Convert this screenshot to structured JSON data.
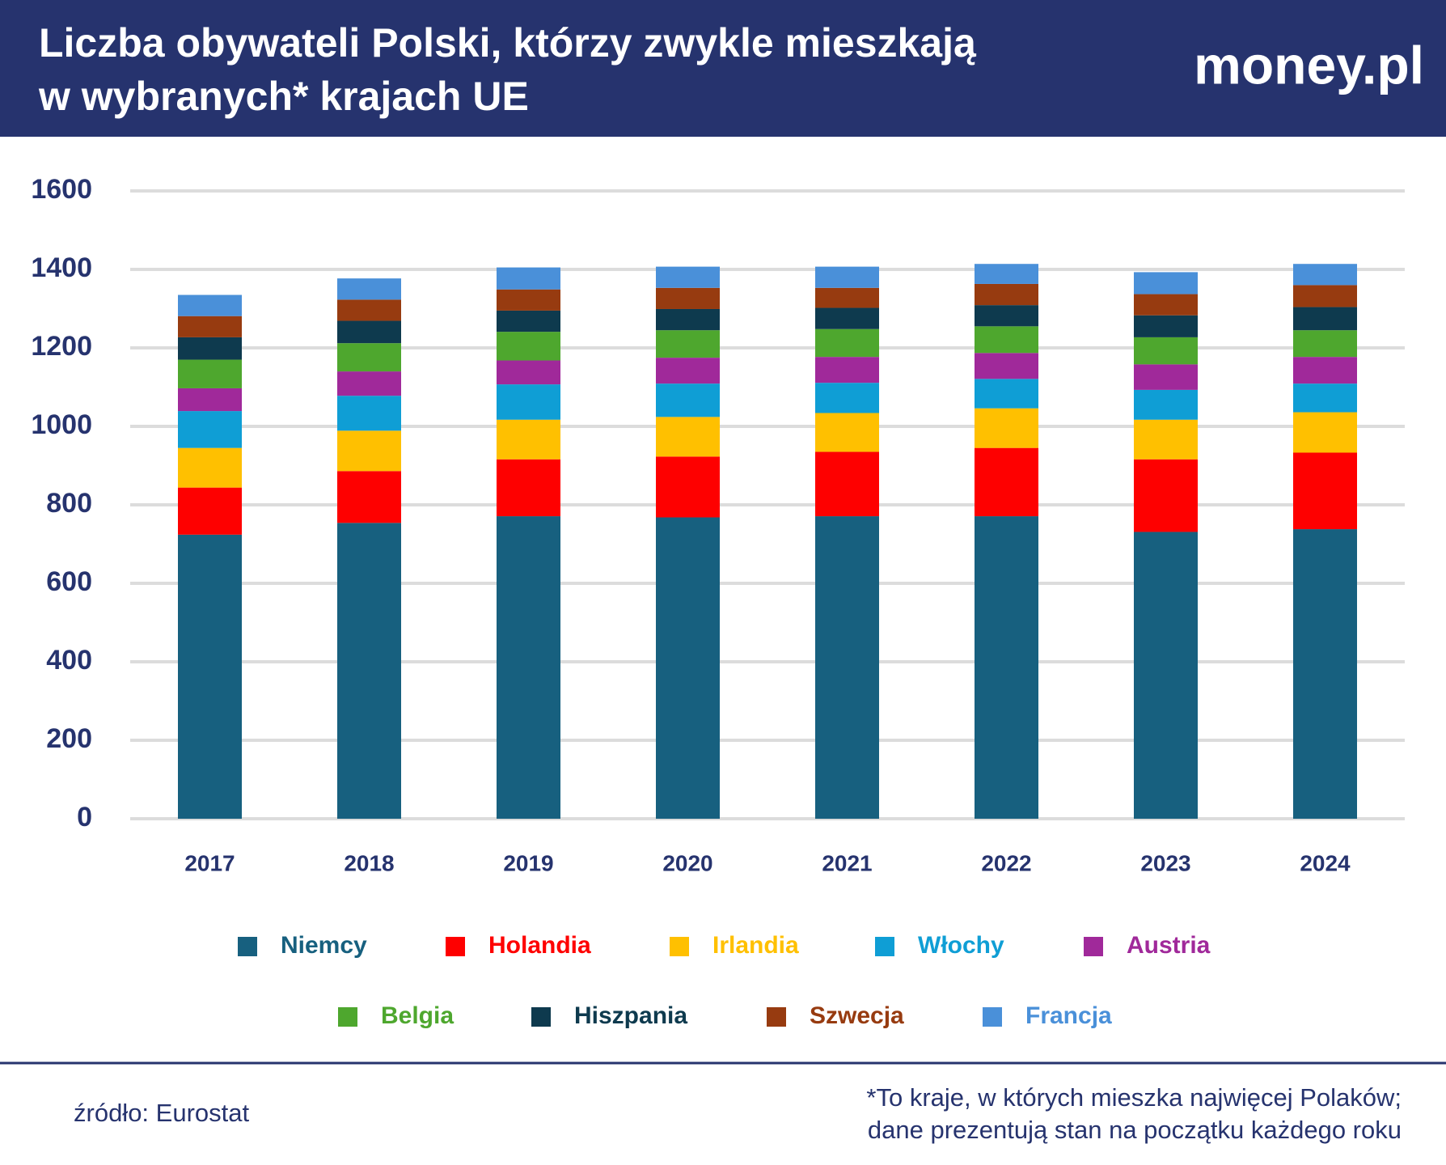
{
  "chart_data": {
    "type": "stacked_bar",
    "title": [
      "Liczba obywateli Polski, którzy zwykle mieszkają",
      "w wybranych* krajach UE"
    ],
    "logo": "money.pl",
    "categories": [
      "2017",
      "2018",
      "2019",
      "2020",
      "2021",
      "2022",
      "2023",
      "2024"
    ],
    "series": [
      {
        "name": "Niemcy",
        "color": "#17607f",
        "values": [
          724,
          754,
          771,
          768,
          771,
          771,
          731,
          738
        ]
      },
      {
        "name": "Holandia",
        "color": "#fe0000",
        "values": [
          120,
          132,
          145,
          155,
          164,
          174,
          185,
          195
        ]
      },
      {
        "name": "Irlandia",
        "color": "#ffc000",
        "values": [
          101,
          103,
          101,
          101,
          99,
          101,
          101,
          103
        ]
      },
      {
        "name": "Włochy",
        "color": "#0f9ed5",
        "values": [
          94,
          89,
          90,
          85,
          77,
          75,
          76,
          73
        ]
      },
      {
        "name": "Austria",
        "color": "#a0299a",
        "values": [
          58,
          62,
          61,
          66,
          66,
          66,
          65,
          68
        ]
      },
      {
        "name": "Belgia",
        "color": "#4ea72e",
        "values": [
          73,
          72,
          73,
          70,
          71,
          68,
          69,
          68
        ]
      },
      {
        "name": "Hiszpania",
        "color": "#0e3a4e",
        "values": [
          57,
          57,
          54,
          54,
          54,
          54,
          56,
          59
        ]
      },
      {
        "name": "Szwecja",
        "color": "#973b10",
        "values": [
          54,
          54,
          54,
          54,
          51,
          54,
          54,
          56
        ]
      },
      {
        "name": "Francja",
        "color": "#4a90d9",
        "values": [
          54,
          54,
          56,
          54,
          54,
          51,
          56,
          54
        ]
      }
    ],
    "ylim": [
      0,
      1600
    ],
    "yticks": [
      0,
      200,
      400,
      600,
      800,
      1000,
      1200,
      1400,
      1600
    ],
    "grid": true,
    "source": "źródło: Eurostat",
    "note": [
      "*To kraje, w których mieszka najwięcej Polaków;",
      "dane prezentują stan na początku każdego roku"
    ]
  }
}
